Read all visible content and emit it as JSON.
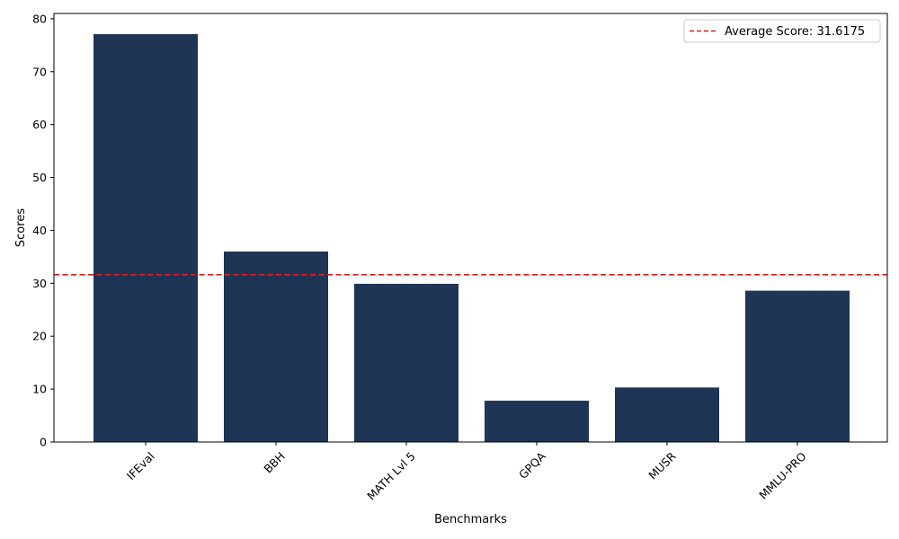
{
  "chart_data": {
    "type": "bar",
    "categories": [
      "IFEval",
      "BBH",
      "MATH Lvl 5",
      "GPQA",
      "MUSR",
      "MMLU-PRO"
    ],
    "values": [
      77.1,
      36.0,
      29.9,
      7.8,
      10.3,
      28.6
    ],
    "xlabel": "Benchmarks",
    "ylabel": "Scores",
    "ylim": [
      0,
      81
    ],
    "yticks": [
      0,
      10,
      20,
      30,
      40,
      50,
      60,
      70,
      80
    ],
    "grid": false,
    "bar_color": "#1f3556",
    "reference_line": {
      "value": 31.6175,
      "label": "Average Score: 31.6175",
      "color": "#e31a1c",
      "style": "dashed"
    },
    "legend_position": "top-right"
  }
}
